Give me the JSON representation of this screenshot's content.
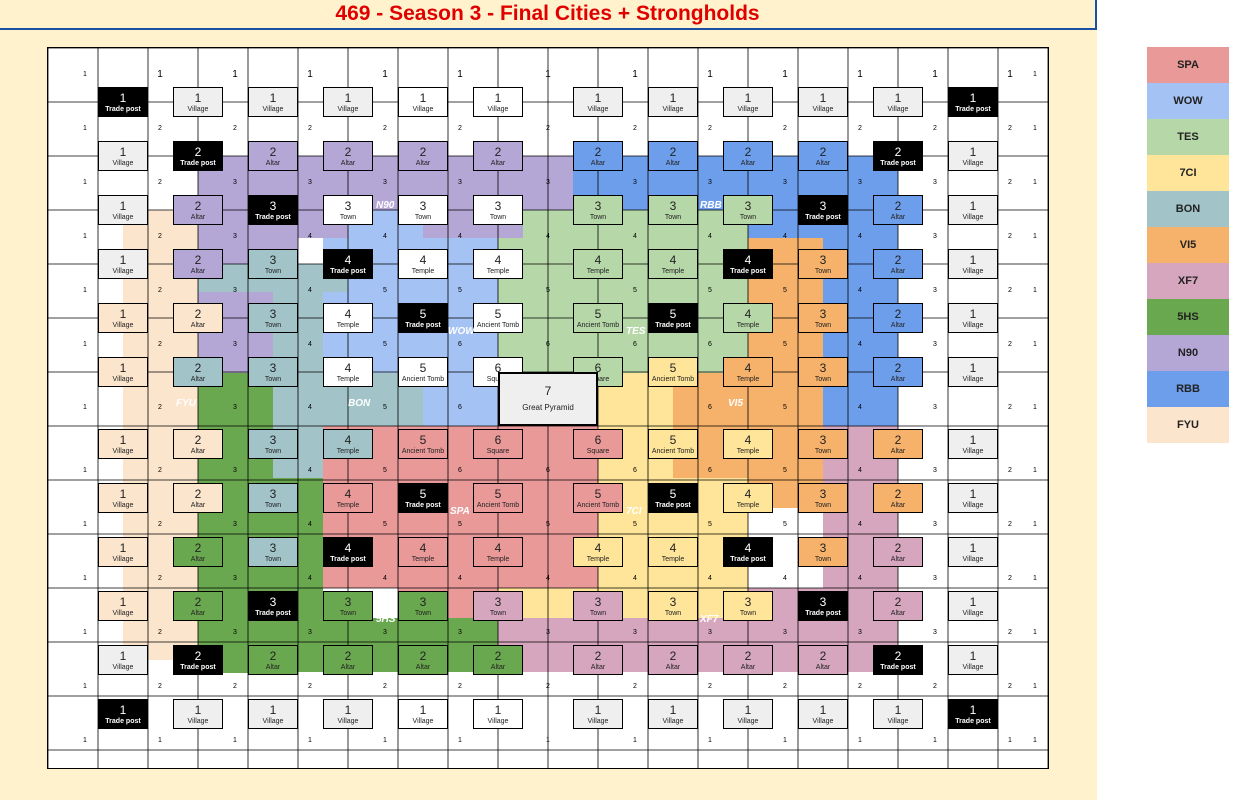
{
  "title": "469 - Season 3 - Final Cities + Strongholds",
  "alliances": [
    {
      "code": "SPA",
      "color": "#ea9999"
    },
    {
      "code": "WOW",
      "color": "#a4c2f4"
    },
    {
      "code": "TES",
      "color": "#b6d7a8"
    },
    {
      "code": "7CI",
      "color": "#ffe599"
    },
    {
      "code": "BON",
      "color": "#a2c4c9"
    },
    {
      "code": "VI5",
      "color": "#f6b26b"
    },
    {
      "code": "XF7",
      "color": "#d5a6bd"
    },
    {
      "code": "5HS",
      "color": "#6aa84f"
    },
    {
      "code": "N90",
      "color": "#b4a7d6"
    },
    {
      "code": "RBB",
      "color": "#6d9eeb"
    },
    {
      "code": "FYU",
      "color": "#fce5cd"
    }
  ],
  "territory_rows": [
    "..............................................",
    "..............................................",
    "......NNNNNNNNNNNNRRRRRRRRR...................",
    "......NNNNNNNNNNNNRRRRRRRRRRRRRR..............",
    "......NNNNNNNNNNNNRRRRRRRRRRRRRR..............",
    "....FFNNNWWWWWWTTTTTTTRRRRRRRRRR..............",
    "....FFNNNWWWWWWTTTTTTTRRRRRRRRRR..............",
    "....FFNNBBWWWWWTTTTTTTVVVVRRRRRRRR............",
    "....FFNNBBWWWWWTTTTTTTVVVVRRRRRRRR............",
    "....FFNNBBBWWWWWWTTTTTVVVVRRRRRRRR............",
    "....FFNNBBBWWWWWWTTTTTVVVVRRRRRRRR............",
    "....FFNNBBBWWWWWWTTTTTVVVVRRRRRRRR............"
  ],
  "board_note": "legend",
  "rows": [
    {
      "cells": [
        [
          "1",
          "Trade post",
          "K"
        ],
        [
          "1",
          "Village",
          "G"
        ],
        [
          "1",
          "Village",
          "G"
        ],
        [
          "1",
          "Village",
          "G"
        ],
        [
          "1",
          "Village",
          "W"
        ],
        [
          "1",
          "Village",
          "W"
        ],
        [
          "1",
          "Village",
          "G"
        ],
        [
          "1",
          "Village",
          "G"
        ],
        [
          "1",
          "Village",
          "G"
        ],
        [
          "1",
          "Village",
          "G"
        ],
        [
          "1",
          "Village",
          "G"
        ],
        [
          "1",
          "Trade post",
          "K"
        ]
      ]
    },
    {
      "cells": [
        [
          "1",
          "Village",
          "G"
        ],
        [
          "2",
          "Trade post",
          "K"
        ],
        [
          "2",
          "Altar",
          "N"
        ],
        [
          "2",
          "Altar",
          "N"
        ],
        [
          "2",
          "Altar",
          "N"
        ],
        [
          "2",
          "Altar",
          "N"
        ],
        [
          "2",
          "Altar",
          "R"
        ],
        [
          "2",
          "Altar",
          "R"
        ],
        [
          "2",
          "Altar",
          "R"
        ],
        [
          "2",
          "Altar",
          "R"
        ],
        [
          "2",
          "Trade post",
          "K"
        ],
        [
          "1",
          "Village",
          "G"
        ]
      ]
    },
    {
      "cells": [
        [
          "1",
          "Village",
          "G"
        ],
        [
          "2",
          "Altar",
          "N"
        ],
        [
          "3",
          "Trade post",
          "K"
        ],
        [
          "3",
          "Town",
          "W"
        ],
        [
          "3",
          "Town",
          "W"
        ],
        [
          "3",
          "Town",
          "W"
        ],
        [
          "3",
          "Town",
          "T"
        ],
        [
          "3",
          "Town",
          "T"
        ],
        [
          "3",
          "Town",
          "T"
        ],
        [
          "3",
          "Trade post",
          "K"
        ],
        [
          "2",
          "Altar",
          "R"
        ],
        [
          "1",
          "Village",
          "G"
        ]
      ]
    },
    {
      "cells": [
        [
          "1",
          "Village",
          "G"
        ],
        [
          "2",
          "Altar",
          "N"
        ],
        [
          "3",
          "Town",
          "B"
        ],
        [
          "4",
          "Trade post",
          "K"
        ],
        [
          "4",
          "Temple",
          "W"
        ],
        [
          "4",
          "Temple",
          "W"
        ],
        [
          "4",
          "Temple",
          "T"
        ],
        [
          "4",
          "Temple",
          "T"
        ],
        [
          "4",
          "Trade post",
          "K"
        ],
        [
          "3",
          "Town",
          "V"
        ],
        [
          "2",
          "Altar",
          "R"
        ],
        [
          "1",
          "Village",
          "G"
        ]
      ]
    },
    {
      "cells": [
        [
          "1",
          "Village",
          "F"
        ],
        [
          "2",
          "Altar",
          "F"
        ],
        [
          "3",
          "Town",
          "B"
        ],
        [
          "4",
          "Temple",
          "W"
        ],
        [
          "5",
          "Trade post",
          "K"
        ],
        [
          "5",
          "Ancient Tomb",
          "W"
        ],
        [
          "5",
          "Ancient Tomb",
          "T"
        ],
        [
          "5",
          "Trade post",
          "K"
        ],
        [
          "4",
          "Temple",
          "T"
        ],
        [
          "3",
          "Town",
          "V"
        ],
        [
          "2",
          "Altar",
          "R"
        ],
        [
          "1",
          "Village",
          "G"
        ]
      ]
    },
    {
      "cells": [
        [
          "1",
          "Village",
          "F"
        ],
        [
          "2",
          "Altar",
          "B"
        ],
        [
          "3",
          "Town",
          "B"
        ],
        [
          "4",
          "Temple",
          "W"
        ],
        [
          "5",
          "Ancient Tomb",
          "W"
        ],
        [
          "6",
          "Square",
          "W"
        ],
        [
          "6",
          "Square",
          "T"
        ],
        [
          "5",
          "Ancient Tomb",
          "Y"
        ],
        [
          "4",
          "Temple",
          "V"
        ],
        [
          "3",
          "Town",
          "V"
        ],
        [
          "2",
          "Altar",
          "R"
        ],
        [
          "1",
          "Village",
          "G"
        ]
      ]
    },
    {
      "cells": [
        [
          "1",
          "Village",
          "F"
        ],
        [
          "2",
          "Altar",
          "F"
        ],
        [
          "3",
          "Town",
          "B"
        ],
        [
          "4",
          "Temple",
          "B"
        ],
        [
          "5",
          "Ancient Tomb",
          "S"
        ],
        [
          "6",
          "Square",
          "S"
        ],
        [
          "6",
          "Square",
          "S"
        ],
        [
          "5",
          "Ancient Tomb",
          "Y"
        ],
        [
          "4",
          "Temple",
          "Y"
        ],
        [
          "3",
          "Town",
          "V"
        ],
        [
          "2",
          "Altar",
          "W2"
        ],
        [
          "1",
          "Village",
          "G"
        ]
      ]
    },
    {
      "cells": [
        [
          "1",
          "Village",
          "F"
        ],
        [
          "2",
          "Altar",
          "F"
        ],
        [
          "3",
          "Town",
          "B"
        ],
        [
          "4",
          "Temple",
          "S"
        ],
        [
          "5",
          "Trade post",
          "K"
        ],
        [
          "5",
          "Ancient Tomb",
          "S"
        ],
        [
          "5",
          "Ancient Tomb",
          "S"
        ],
        [
          "5",
          "Trade post",
          "K"
        ],
        [
          "4",
          "Temple",
          "Y"
        ],
        [
          "3",
          "Town",
          "V"
        ],
        [
          "2",
          "Altar",
          "V"
        ],
        [
          "1",
          "Village",
          "G"
        ]
      ]
    },
    {
      "cells": [
        [
          "1",
          "Village",
          "F"
        ],
        [
          "2",
          "Altar",
          "H"
        ],
        [
          "3",
          "Town",
          "B"
        ],
        [
          "4",
          "Trade post",
          "K"
        ],
        [
          "4",
          "Temple",
          "S"
        ],
        [
          "4",
          "Temple",
          "S"
        ],
        [
          "4",
          "Temple",
          "Y"
        ],
        [
          "4",
          "Temple",
          "Y"
        ],
        [
          "4",
          "Trade post",
          "K"
        ],
        [
          "3",
          "Town",
          "V"
        ],
        [
          "2",
          "Altar",
          "X"
        ],
        [
          "1",
          "Village",
          "G"
        ]
      ]
    },
    {
      "cells": [
        [
          "1",
          "Village",
          "F"
        ],
        [
          "2",
          "Altar",
          "H"
        ],
        [
          "3",
          "Trade post",
          "K"
        ],
        [
          "3",
          "Town",
          "H"
        ],
        [
          "3",
          "Town",
          "H"
        ],
        [
          "3",
          "Town",
          "X"
        ],
        [
          "3",
          "Town",
          "X"
        ],
        [
          "3",
          "Town",
          "Y"
        ],
        [
          "3",
          "Town",
          "Y"
        ],
        [
          "3",
          "Trade post",
          "K"
        ],
        [
          "2",
          "Altar",
          "X"
        ],
        [
          "1",
          "Village",
          "G"
        ]
      ]
    },
    {
      "cells": [
        [
          "1",
          "Village",
          "G"
        ],
        [
          "2",
          "Trade post",
          "K"
        ],
        [
          "2",
          "Altar",
          "H"
        ],
        [
          "2",
          "Altar",
          "H"
        ],
        [
          "2",
          "Altar",
          "H"
        ],
        [
          "2",
          "Altar",
          "H"
        ],
        [
          "2",
          "Altar",
          "X"
        ],
        [
          "2",
          "Altar",
          "X"
        ],
        [
          "2",
          "Altar",
          "X"
        ],
        [
          "2",
          "Altar",
          "X"
        ],
        [
          "2",
          "Trade post",
          "K"
        ],
        [
          "1",
          "Village",
          "G"
        ]
      ]
    },
    {
      "cells": [
        [
          "1",
          "Trade post",
          "K"
        ],
        [
          "1",
          "Village",
          "G"
        ],
        [
          "1",
          "Village",
          "G"
        ],
        [
          "1",
          "Village",
          "G"
        ],
        [
          "1",
          "Village",
          "W"
        ],
        [
          "1",
          "Village",
          "W"
        ],
        [
          "1",
          "Village",
          "G"
        ],
        [
          "1",
          "Village",
          "G"
        ],
        [
          "1",
          "Village",
          "G"
        ],
        [
          "1",
          "Village",
          "G"
        ],
        [
          "1",
          "Village",
          "G"
        ],
        [
          "1",
          "Trade post",
          "K"
        ]
      ]
    }
  ],
  "center": {
    "level": "7",
    "type": "Great Pyramid"
  },
  "region_tags": [
    "N90",
    "RBB",
    "WOW",
    "TES",
    "BON",
    "VI5",
    "FYU",
    "SPA",
    "7CI",
    "5HS",
    "XF7"
  ],
  "grid_numbers": [
    [
      "1",
      "1",
      "1",
      "1",
      "1",
      "1",
      "1",
      "1",
      "1",
      "1",
      "1",
      "1",
      "1",
      "1"
    ],
    [
      "1",
      "2",
      "2",
      "2",
      "2",
      "2",
      "2",
      "2",
      "2",
      "2",
      "2",
      "2",
      "2",
      "1"
    ],
    [
      "1",
      "2",
      "3",
      "3",
      "3",
      "3",
      "3",
      "3",
      "3",
      "3",
      "3",
      "3",
      "2",
      "1"
    ],
    [
      "1",
      "2",
      "3",
      "4",
      "4",
      "4",
      "4",
      "4",
      "4",
      "4",
      "4",
      "3",
      "2",
      "1"
    ],
    [
      "1",
      "2",
      "3",
      "4",
      "5",
      "5",
      "5",
      "5",
      "5",
      "5",
      "4",
      "3",
      "2",
      "1"
    ],
    [
      "1",
      "2",
      "3",
      "4",
      "5",
      "6",
      "6",
      "6",
      "6",
      "5",
      "4",
      "3",
      "2",
      "1"
    ],
    [
      "1",
      "2",
      "3",
      "4",
      "5",
      "6",
      "",
      "",
      "6",
      "5",
      "4",
      "3",
      "2",
      "1"
    ],
    [
      "1",
      "2",
      "3",
      "4",
      "5",
      "6",
      "6",
      "6",
      "6",
      "5",
      "4",
      "3",
      "2",
      "1"
    ],
    [
      "1",
      "2",
      "3",
      "4",
      "5",
      "5",
      "5",
      "5",
      "5",
      "5",
      "4",
      "3",
      "2",
      "1"
    ],
    [
      "1",
      "2",
      "3",
      "4",
      "4",
      "4",
      "4",
      "4",
      "4",
      "4",
      "4",
      "3",
      "2",
      "1"
    ],
    [
      "1",
      "2",
      "3",
      "3",
      "3",
      "3",
      "3",
      "3",
      "3",
      "3",
      "3",
      "3",
      "2",
      "1"
    ],
    [
      "1",
      "2",
      "2",
      "2",
      "2",
      "2",
      "2",
      "2",
      "2",
      "2",
      "2",
      "2",
      "2",
      "1"
    ],
    [
      "1",
      "1",
      "1",
      "1",
      "1",
      "1",
      "1",
      "1",
      "1",
      "1",
      "1",
      "1",
      "1",
      "1"
    ]
  ]
}
